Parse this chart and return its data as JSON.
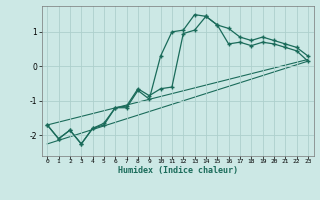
{
  "xlabel": "Humidex (Indice chaleur)",
  "ylabel": "",
  "background_color": "#cce8e5",
  "grid_color": "#add0cc",
  "line_color": "#1a6b5a",
  "xlim": [
    -0.5,
    23.5
  ],
  "ylim": [
    -2.6,
    1.75
  ],
  "x_ticks": [
    0,
    1,
    2,
    3,
    4,
    5,
    6,
    7,
    8,
    9,
    10,
    11,
    12,
    13,
    14,
    15,
    16,
    17,
    18,
    19,
    20,
    21,
    22,
    23
  ],
  "y_ticks": [
    -2,
    -1,
    0,
    1
  ],
  "line1_x": [
    0,
    1,
    2,
    3,
    4,
    5,
    6,
    7,
    8,
    9,
    10,
    11,
    12,
    13,
    14,
    15,
    16,
    17,
    18,
    19,
    20,
    21,
    22,
    23
  ],
  "line1_y": [
    -1.7,
    -2.1,
    -1.85,
    -2.25,
    -1.8,
    -1.7,
    -1.2,
    -1.15,
    -0.65,
    -0.85,
    -0.65,
    -0.6,
    0.95,
    1.05,
    1.45,
    1.2,
    1.1,
    0.85,
    0.75,
    0.85,
    0.75,
    0.65,
    0.55,
    0.3
  ],
  "line2_x": [
    0,
    1,
    2,
    3,
    4,
    5,
    6,
    7,
    8,
    9,
    10,
    11,
    12,
    13,
    14,
    15,
    16,
    17,
    18,
    19,
    20,
    21,
    22,
    23
  ],
  "line2_y": [
    -1.7,
    -2.1,
    -1.85,
    -2.25,
    -1.8,
    -1.65,
    -1.2,
    -1.2,
    -0.7,
    -0.95,
    0.3,
    1.0,
    1.05,
    1.5,
    1.45,
    1.2,
    0.65,
    0.7,
    0.6,
    0.7,
    0.65,
    0.55,
    0.45,
    0.15
  ],
  "line3_x": [
    0,
    23
  ],
  "line3_y": [
    -1.7,
    0.2
  ],
  "line4_x": [
    0,
    23
  ],
  "line4_y": [
    -2.25,
    0.15
  ]
}
